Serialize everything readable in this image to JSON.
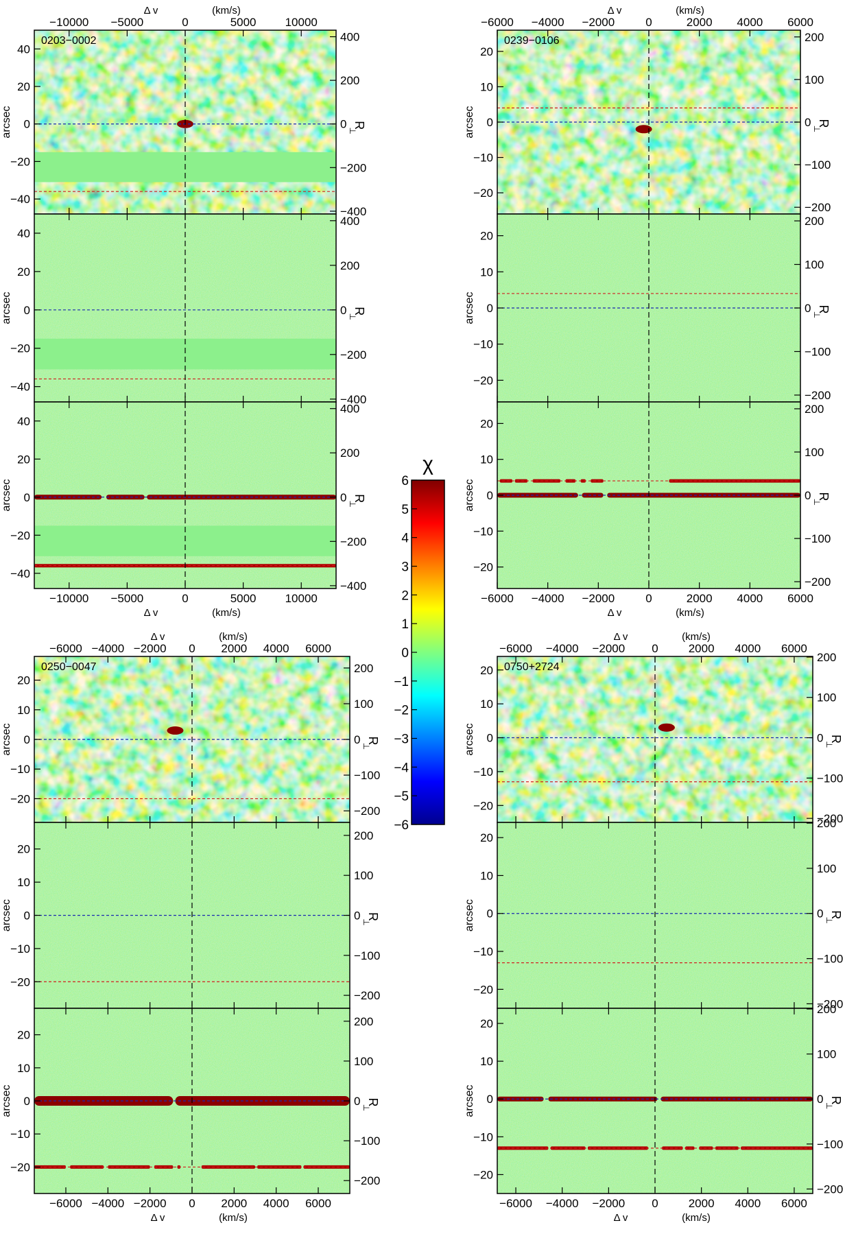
{
  "figure": {
    "colorbar": {
      "title": "χ",
      "min": -6,
      "max": 6,
      "ticks": [
        "6",
        "5",
        "4",
        "3",
        "2",
        "1",
        "0",
        "−1",
        "−2",
        "−3",
        "−4",
        "−5",
        "−6"
      ],
      "colormap": [
        "#00008f",
        "#0000ff",
        "#0080ff",
        "#00ffff",
        "#80ff80",
        "#ffff00",
        "#ff8000",
        "#ff0000",
        "#800000"
      ]
    },
    "axis_labels": {
      "xlabel_left": "Δ v",
      "xlabel_right": "(km/s)",
      "ylabel": "arcsec",
      "rperp_main": "R",
      "rperp_sub": "⊥"
    }
  },
  "chart_data": [
    {
      "type": "heatmap",
      "title": "0203−0002",
      "colors": {
        "background": "#8cf08c",
        "noise": [
          "#3cc8ff",
          "#78e6a0",
          "#b4f05a",
          "#ffdc28",
          "#ff7814"
        ]
      },
      "xlim": [
        -13000,
        13000
      ],
      "ylim": [
        -48,
        50
      ],
      "xticks": [
        -10000,
        -5000,
        0,
        5000,
        10000
      ],
      "xticklabels": [
        "−10000",
        "−5000",
        "0",
        "5000",
        "10000"
      ],
      "yticks": [
        40,
        20,
        0,
        -20,
        -40
      ],
      "yticklabels": [
        "40",
        "20",
        "0",
        "−20",
        "−40"
      ],
      "rperp_ticks": [
        400,
        200,
        0,
        -200,
        -400
      ],
      "rperp_labels": [
        "400",
        "200",
        "0",
        "−200",
        "−400"
      ],
      "kpc_per_arcsec": 8.6,
      "masked_band": [
        -31,
        -15
      ],
      "panels": [
        {
          "name": "smoothed-residual",
          "smooth": true
        },
        {
          "name": "residual",
          "smooth": false
        },
        {
          "name": "raw-spectrum",
          "smooth": false
        }
      ],
      "qso_offset": 0,
      "companion_offset": -36,
      "companion_profile": "full",
      "qso_profile": "full",
      "emission_blob": {
        "x": 0,
        "y": 0
      }
    },
    {
      "type": "heatmap",
      "title": "0239−0106",
      "xlim": [
        -6000,
        6000
      ],
      "ylim": [
        -26,
        26
      ],
      "xticks": [
        -6000,
        -4000,
        -2000,
        0,
        2000,
        4000,
        6000
      ],
      "xticklabels": [
        "−6000",
        "−4000",
        "−2000",
        "0",
        "2000",
        "4000",
        "6000"
      ],
      "yticks": [
        20,
        10,
        0,
        -10,
        -20
      ],
      "yticklabels": [
        "20",
        "10",
        "0",
        "−10",
        "−20"
      ],
      "rperp_ticks": [
        200,
        100,
        0,
        -100,
        -200
      ],
      "rperp_labels": [
        "200",
        "100",
        "0",
        "−100",
        "−200"
      ],
      "kpc_per_arcsec": 8.3,
      "qso_offset": 0,
      "companion_offset": 4,
      "companion_profile": "gappy",
      "qso_profile": "full",
      "emission_blob": {
        "x": -200,
        "y": -2
      }
    },
    {
      "type": "heatmap",
      "title": "0250−0047",
      "xlim": [
        -7500,
        7500
      ],
      "ylim": [
        -28,
        28
      ],
      "xticks": [
        -6000,
        -4000,
        -2000,
        0,
        2000,
        4000,
        6000
      ],
      "xticklabels": [
        "−6000",
        "−4000",
        "−2000",
        "0",
        "2000",
        "4000",
        "6000"
      ],
      "yticks": [
        20,
        10,
        0,
        -10,
        -20
      ],
      "yticklabels": [
        "20",
        "10",
        "0",
        "−10",
        "−20"
      ],
      "rperp_ticks": [
        200,
        100,
        0,
        -100,
        -200
      ],
      "rperp_labels": [
        "200",
        "100",
        "0",
        "−100",
        "−200"
      ],
      "kpc_per_arcsec": 8.3,
      "qso_offset": 0,
      "companion_offset": -20,
      "companion_profile": "gappy",
      "qso_profile": "thick",
      "emission_blob": {
        "x": -800,
        "y": 3
      }
    },
    {
      "type": "heatmap",
      "title": "0750+2724",
      "xlim": [
        -6800,
        6800
      ],
      "ylim": [
        -25,
        24
      ],
      "xticks": [
        -6000,
        -4000,
        -2000,
        0,
        2000,
        4000,
        6000
      ],
      "xticklabels": [
        "−6000",
        "−4000",
        "−2000",
        "0",
        "2000",
        "4000",
        "6000"
      ],
      "yticks": [
        20,
        10,
        0,
        -10,
        -20
      ],
      "yticklabels": [
        "20",
        "10",
        "0",
        "−10",
        "−20"
      ],
      "rperp_ticks": [
        200,
        100,
        0,
        -100,
        -200
      ],
      "rperp_labels": [
        "200",
        "100",
        "0",
        "−100",
        "−200"
      ],
      "kpc_per_arcsec": 8.4,
      "qso_offset": 0,
      "companion_offset": -13,
      "companion_profile": "gappy",
      "qso_profile": "full",
      "emission_blob": {
        "x": 500,
        "y": 3
      }
    }
  ]
}
